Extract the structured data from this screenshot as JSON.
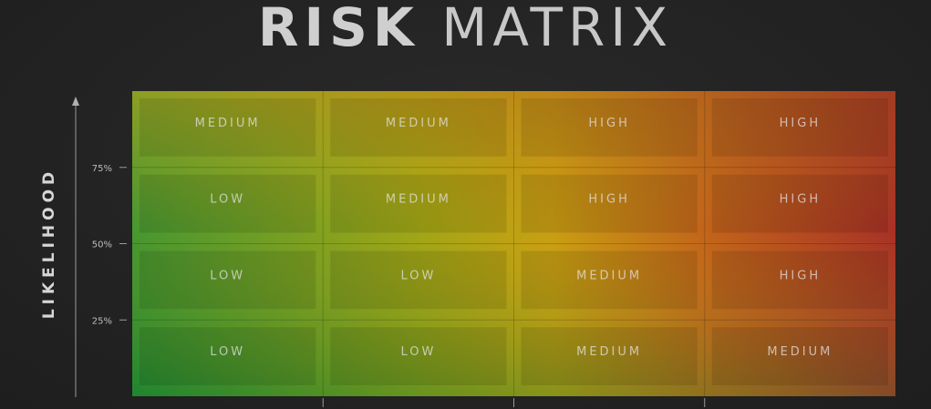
{
  "title": {
    "bold": "RISK",
    "light": "MATRIX"
  },
  "colors": {
    "low": "#2e9a3a",
    "medium": "#c9a012",
    "high": "#c0501e",
    "extreme": "#a01e2c",
    "background": "#232323"
  },
  "chart_data": {
    "type": "heatmap",
    "title": "RISK MATRIX",
    "ylabel": "LIKELIHOOD",
    "xlabel": "",
    "y_ticks": [
      "75%",
      "50%",
      "25%"
    ],
    "rows": [
      [
        "MEDIUM",
        "MEDIUM",
        "HIGH",
        "HIGH"
      ],
      [
        "LOW",
        "MEDIUM",
        "HIGH",
        "HIGH"
      ],
      [
        "LOW",
        "LOW",
        "MEDIUM",
        "HIGH"
      ],
      [
        "LOW",
        "LOW",
        "MEDIUM",
        "MEDIUM"
      ]
    ]
  }
}
